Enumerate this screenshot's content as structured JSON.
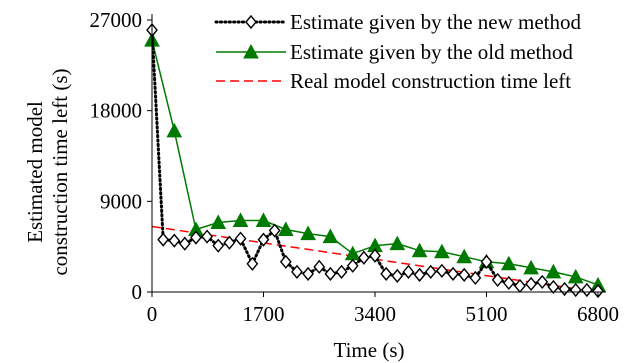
{
  "chart_data": {
    "type": "line",
    "title": "",
    "xlabel": "Time (s)",
    "ylabel": [
      "Estimated model",
      "construction time left (s)"
    ],
    "xlim": [
      0,
      6800
    ],
    "ylim": [
      0,
      27000
    ],
    "xticks": [
      0,
      1700,
      3400,
      5100,
      6800
    ],
    "yticks": [
      0,
      9000,
      18000,
      27000
    ],
    "grid": false,
    "legend_position": "top-right",
    "series": [
      {
        "name": "Estimate given by the new method",
        "color": "#000000",
        "line_style": "dotted",
        "marker": "diamond-open",
        "x": [
          0,
          170,
          340,
          500,
          670,
          840,
          1010,
          1180,
          1350,
          1530,
          1700,
          1870,
          2040,
          2210,
          2380,
          2550,
          2720,
          2890,
          3060,
          3230,
          3400,
          3570,
          3740,
          3910,
          4080,
          4250,
          4420,
          4590,
          4760,
          4930,
          5100,
          5270,
          5440,
          5610,
          5780,
          5950,
          6120,
          6290,
          6460,
          6630,
          6800
        ],
        "y": [
          26000,
          5200,
          5100,
          4800,
          5400,
          5500,
          4600,
          4900,
          5300,
          2800,
          5200,
          6100,
          3000,
          2000,
          1800,
          2500,
          1800,
          2000,
          2600,
          3400,
          3600,
          1800,
          1600,
          2000,
          1700,
          2000,
          2100,
          1800,
          1700,
          1400,
          3000,
          1200,
          900,
          600,
          800,
          1000,
          500,
          300,
          200,
          200,
          100
        ]
      },
      {
        "name": "Estimate given by the old method",
        "color": "#007a00",
        "line_style": "solid",
        "marker": "triangle-filled",
        "x": [
          0,
          340,
          670,
          1010,
          1350,
          1700,
          2040,
          2380,
          2720,
          3060,
          3400,
          3740,
          4080,
          4420,
          4760,
          5100,
          5440,
          5780,
          6120,
          6460,
          6800
        ],
        "y": [
          25000,
          16000,
          6200,
          6900,
          7100,
          7100,
          6200,
          5800,
          5500,
          3800,
          4600,
          4800,
          4100,
          4000,
          3500,
          3000,
          2800,
          2400,
          2000,
          1500,
          700
        ]
      },
      {
        "name": "Real model construction time left",
        "color": "#ff0000",
        "line_style": "dashed",
        "marker": "none",
        "x": [
          0,
          6800
        ],
        "y": [
          6500,
          0
        ]
      }
    ]
  }
}
